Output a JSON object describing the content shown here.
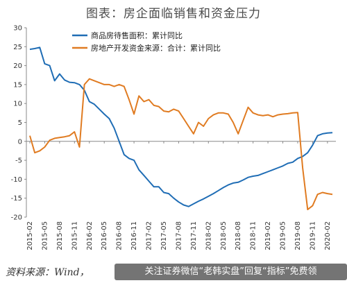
{
  "chart_data": {
    "type": "line",
    "title": "图表：房企面临销售和资金压力",
    "xlabel": "",
    "ylabel": "",
    "ylim": [
      -20,
      30
    ],
    "yticks": [
      -20,
      -15,
      -10,
      -5,
      0,
      5,
      10,
      15,
      20,
      25,
      30
    ],
    "x": [
      "2015-02",
      "2015-03",
      "2015-04",
      "2015-05",
      "2015-06",
      "2015-07",
      "2015-08",
      "2015-09",
      "2015-10",
      "2015-11",
      "2015-12",
      "2016-01",
      "2016-02",
      "2016-03",
      "2016-04",
      "2016-05",
      "2016-06",
      "2016-07",
      "2016-08",
      "2016-09",
      "2016-10",
      "2016-11",
      "2016-12",
      "2017-01",
      "2017-02",
      "2017-03",
      "2017-04",
      "2017-05",
      "2017-06",
      "2017-07",
      "2017-08",
      "2017-09",
      "2017-10",
      "2017-11",
      "2017-12",
      "2018-01",
      "2018-02",
      "2018-03",
      "2018-04",
      "2018-05",
      "2018-06",
      "2018-07",
      "2018-08",
      "2018-09",
      "2018-10",
      "2018-11",
      "2018-12",
      "2019-01",
      "2019-02",
      "2019-03",
      "2019-04",
      "2019-05",
      "2019-06",
      "2019-07",
      "2019-08",
      "2019-09",
      "2019-10",
      "2019-11",
      "2019-12",
      "2020-01",
      "2020-02",
      "2020-03"
    ],
    "x_tick_labels": [
      "2015-02",
      "2015-05",
      "2015-08",
      "2015-11",
      "2016-02",
      "2016-05",
      "2016-08",
      "2016-11",
      "2017-02",
      "2017-05",
      "2017-08",
      "2017-11",
      "2018-02",
      "2018-05",
      "2018-08",
      "2018-11",
      "2019-02",
      "2019-05",
      "2019-08",
      "2019-11",
      "2020-02"
    ],
    "legend_position": "top-left",
    "grid": false,
    "series": [
      {
        "name": "商品房待售面积：累计同比",
        "color": "#1f6db5",
        "values": [
          24.3,
          24.5,
          24.8,
          20.5,
          20.0,
          16.0,
          17.8,
          16.2,
          15.6,
          15.5,
          15.0,
          13.5,
          10.5,
          9.8,
          8.5,
          7.2,
          6.0,
          3.5,
          0.0,
          -3.5,
          -4.5,
          -5.0,
          -7.5,
          -9.0,
          -10.5,
          -12.0,
          -12.0,
          -13.5,
          -13.8,
          -15.0,
          -16.0,
          -16.8,
          -17.2,
          -16.5,
          -15.8,
          -15.2,
          -14.5,
          -13.8,
          -13.0,
          -12.2,
          -11.5,
          -11.0,
          -10.8,
          -10.2,
          -9.5,
          -9.2,
          -9.0,
          -8.5,
          -8.0,
          -7.5,
          -7.0,
          -6.5,
          -5.8,
          -5.5,
          -4.5,
          -4.0,
          -3.0,
          -1.0,
          1.5,
          2.0,
          2.2,
          2.3
        ]
      },
      {
        "name": "房地产开发资金来源：合计：累计同比",
        "color": "#e07b21",
        "values": [
          1.5,
          -3.0,
          -2.5,
          -1.5,
          0.3,
          0.8,
          1.0,
          1.2,
          1.5,
          2.5,
          -1.5,
          15.0,
          16.5,
          16.0,
          15.5,
          15.0,
          15.0,
          14.5,
          15.0,
          14.5,
          11.0,
          7.2,
          12.0,
          10.5,
          11.0,
          9.5,
          9.2,
          8.0,
          7.8,
          8.5,
          8.0,
          6.0,
          4.0,
          2.0,
          5.0,
          4.0,
          6.0,
          7.0,
          7.5,
          7.5,
          7.2,
          5.0,
          2.0,
          5.5,
          9.0,
          7.5,
          7.0,
          6.8,
          7.0,
          6.5,
          7.0,
          7.2,
          7.3,
          7.5,
          7.6,
          -7.0,
          -18.0,
          -17.0,
          -14.0,
          -13.5,
          -13.8,
          -14.0
        ]
      }
    ]
  },
  "source_text": "资料来源：Wind，",
  "watermark_text": "关注证券微信“老韩实盘”回复“指标”免费领"
}
